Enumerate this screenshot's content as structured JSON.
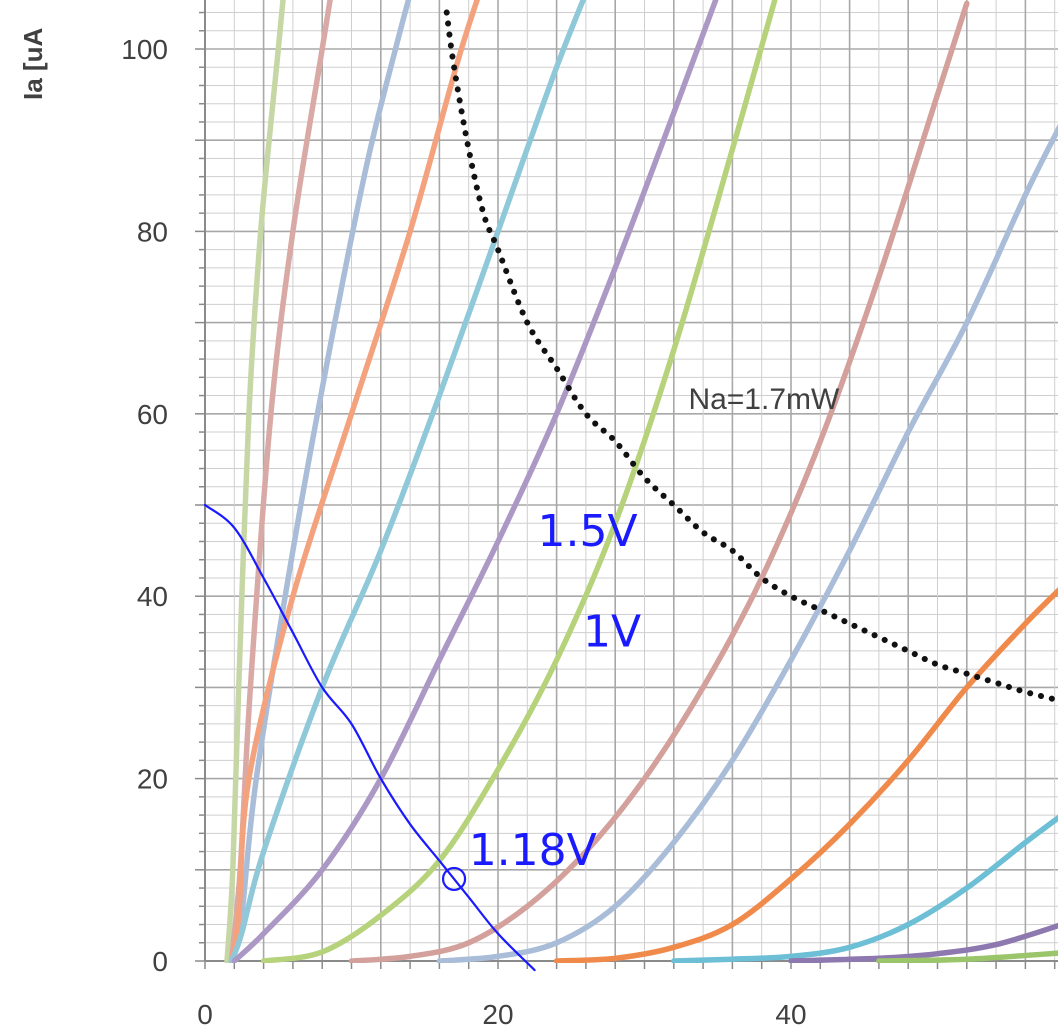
{
  "chart_data": {
    "type": "line",
    "ylabel": "Ia [uA",
    "xlim": [
      0,
      58.5
    ],
    "ylim": [
      0,
      105.5
    ],
    "x_ticks": [
      0,
      20,
      40
    ],
    "y_ticks": [
      0,
      20,
      40,
      60,
      80,
      100
    ],
    "grid": true,
    "series": [
      {
        "color": "#c6d7a5",
        "points": [
          [
            1.5,
            0
          ],
          [
            1.9,
            10
          ],
          [
            2.3,
            30
          ],
          [
            3.0,
            60
          ],
          [
            3.8,
            80
          ],
          [
            5.0,
            100
          ],
          [
            6.2,
            120
          ]
        ]
      },
      {
        "color": "#d9a9a5",
        "points": [
          [
            1.8,
            0
          ],
          [
            2.4,
            10
          ],
          [
            3.1,
            30
          ],
          [
            4.5,
            60
          ],
          [
            6.0,
            80
          ],
          [
            8.0,
            100
          ],
          [
            10.0,
            120
          ]
        ]
      },
      {
        "color": "#a9bcd8",
        "points": [
          [
            1.8,
            0
          ],
          [
            2.5,
            5
          ],
          [
            3.5,
            20
          ],
          [
            6.0,
            45
          ],
          [
            8.5,
            67
          ],
          [
            11.0,
            87
          ],
          [
            13.0,
            100
          ],
          [
            15.0,
            112
          ]
        ]
      },
      {
        "color": "#f4a27d",
        "points": [
          [
            1.8,
            0
          ],
          [
            2.3,
            5
          ],
          [
            3.0,
            20
          ],
          [
            6.0,
            40
          ],
          [
            10.0,
            60
          ],
          [
            14.0,
            80
          ],
          [
            17.5,
            100
          ],
          [
            20.0,
            112
          ]
        ]
      },
      {
        "color": "#8fc8d8",
        "points": [
          [
            1.8,
            0
          ],
          [
            2.5,
            3
          ],
          [
            4.0,
            12
          ],
          [
            8.0,
            30
          ],
          [
            12.0,
            45
          ],
          [
            16.0,
            62
          ],
          [
            20.0,
            80
          ],
          [
            24.0,
            98
          ],
          [
            27.0,
            110
          ]
        ]
      },
      {
        "color": "#ab98c5",
        "points": [
          [
            2.0,
            0
          ],
          [
            4.0,
            3
          ],
          [
            8.0,
            10
          ],
          [
            12.0,
            20
          ],
          [
            16.0,
            33
          ],
          [
            20.0,
            46
          ],
          [
            24.0,
            60
          ],
          [
            28.0,
            76
          ],
          [
            32.0,
            93
          ],
          [
            35.0,
            106
          ]
        ]
      },
      {
        "color": "#b6d37c",
        "points": [
          [
            4.0,
            0
          ],
          [
            8.0,
            1
          ],
          [
            12.0,
            5
          ],
          [
            16.0,
            11
          ],
          [
            20.0,
            21
          ],
          [
            24.0,
            33
          ],
          [
            28.0,
            48
          ],
          [
            32.0,
            67
          ],
          [
            36.0,
            89
          ],
          [
            39.0,
            106
          ]
        ]
      },
      {
        "color": "#d3a09b",
        "points": [
          [
            10.0,
            0
          ],
          [
            14.0,
            0.5
          ],
          [
            18.0,
            2
          ],
          [
            22.0,
            6
          ],
          [
            26.0,
            12
          ],
          [
            30.0,
            20
          ],
          [
            34.0,
            30
          ],
          [
            38.0,
            42
          ],
          [
            42.0,
            57
          ],
          [
            46.0,
            75
          ],
          [
            50.0,
            95
          ],
          [
            52.0,
            105
          ]
        ]
      },
      {
        "color": "#a9bcd8",
        "points": [
          [
            16.0,
            0
          ],
          [
            20.0,
            0.5
          ],
          [
            24.0,
            2
          ],
          [
            28.0,
            6
          ],
          [
            32.0,
            13
          ],
          [
            36.0,
            22
          ],
          [
            40.0,
            33
          ],
          [
            44.0,
            45
          ],
          [
            48.0,
            58
          ],
          [
            52.0,
            70
          ],
          [
            56.0,
            84
          ],
          [
            58.5,
            92
          ]
        ]
      },
      {
        "color": "#f08a4b",
        "points": [
          [
            24.0,
            0
          ],
          [
            28.0,
            0.3
          ],
          [
            32.0,
            1.5
          ],
          [
            36.0,
            4
          ],
          [
            40.0,
            9
          ],
          [
            44.0,
            15
          ],
          [
            48.0,
            22
          ],
          [
            52.0,
            30
          ],
          [
            56.0,
            37
          ],
          [
            58.5,
            41
          ]
        ]
      },
      {
        "color": "#6dbfd6",
        "points": [
          [
            32.0,
            0
          ],
          [
            36.0,
            0.2
          ],
          [
            40.0,
            0.5
          ],
          [
            44.0,
            1.5
          ],
          [
            48.0,
            4
          ],
          [
            52.0,
            8
          ],
          [
            56.0,
            13
          ],
          [
            58.5,
            16
          ]
        ]
      },
      {
        "color": "#8e78b0",
        "points": [
          [
            40.0,
            0
          ],
          [
            46.0,
            0.3
          ],
          [
            50.0,
            0.8
          ],
          [
            54.0,
            1.8
          ],
          [
            58.5,
            4
          ]
        ]
      },
      {
        "color": "#9bc56b",
        "points": [
          [
            46.0,
            0
          ],
          [
            52.0,
            0.2
          ],
          [
            58.5,
            0.9
          ]
        ]
      }
    ],
    "power_curve": {
      "label": "Na=1.7mW",
      "points": [
        [
          16.5,
          104
        ],
        [
          17.0,
          98
        ],
        [
          18.0,
          89
        ],
        [
          19.0,
          82
        ],
        [
          20.0,
          78
        ],
        [
          22.0,
          70
        ],
        [
          24.0,
          65
        ],
        [
          26.0,
          60
        ],
        [
          28.0,
          57
        ],
        [
          30.0,
          53
        ],
        [
          32.0,
          50
        ],
        [
          34.0,
          47
        ],
        [
          36.0,
          45
        ],
        [
          38.0,
          42
        ],
        [
          40.0,
          40
        ],
        [
          42.0,
          38.5
        ],
        [
          44.0,
          37
        ],
        [
          46.0,
          35.5
        ],
        [
          48.0,
          34
        ],
        [
          50.0,
          32.5
        ],
        [
          52.0,
          31.5
        ],
        [
          54.0,
          30.5
        ],
        [
          56.0,
          29.5
        ],
        [
          58.5,
          28.5
        ]
      ]
    },
    "load_line": {
      "points": [
        [
          0,
          50
        ],
        [
          2.0,
          47.5
        ],
        [
          4.0,
          42
        ],
        [
          6.0,
          36
        ],
        [
          8.0,
          30
        ],
        [
          10.0,
          26
        ],
        [
          12.0,
          20
        ],
        [
          14.0,
          15
        ],
        [
          16.0,
          11
        ],
        [
          18.0,
          7
        ],
        [
          20.0,
          3
        ],
        [
          22.5,
          -1
        ]
      ]
    },
    "operating_point": {
      "x": 17.0,
      "y": 9.0
    },
    "annotations": [
      {
        "text": "Na=1.7mW",
        "x": 33.0,
        "y": 60.5
      },
      {
        "text": "1.5V",
        "x": 22.7,
        "y": 45.5
      },
      {
        "text": "1V",
        "x": 25.8,
        "y": 34.5
      },
      {
        "text": "1.18V",
        "x": 18.0,
        "y": 10.5
      }
    ]
  }
}
